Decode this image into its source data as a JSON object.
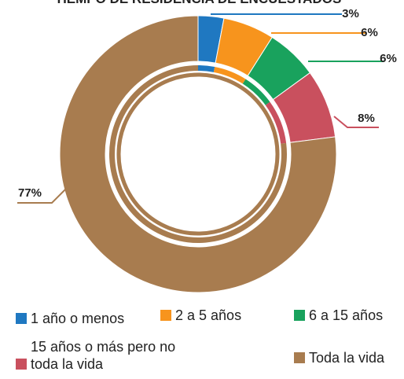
{
  "chart_data": {
    "type": "donut",
    "title": "TIEMPO DE RESIDENCIA DE ENCUESTADOS",
    "categories": [
      "1 año o menos",
      "2 a 5 años",
      "6 a 15 años",
      "15 años o más pero no toda la vida",
      "Toda la vida"
    ],
    "values": [
      3,
      6,
      6,
      8,
      77
    ],
    "value_labels": [
      "3%",
      "6%",
      "6%",
      "8%",
      "77%"
    ],
    "colors": [
      "#1f78c1",
      "#f7941d",
      "#19a25d",
      "#c9505e",
      "#a87c4f"
    ]
  }
}
